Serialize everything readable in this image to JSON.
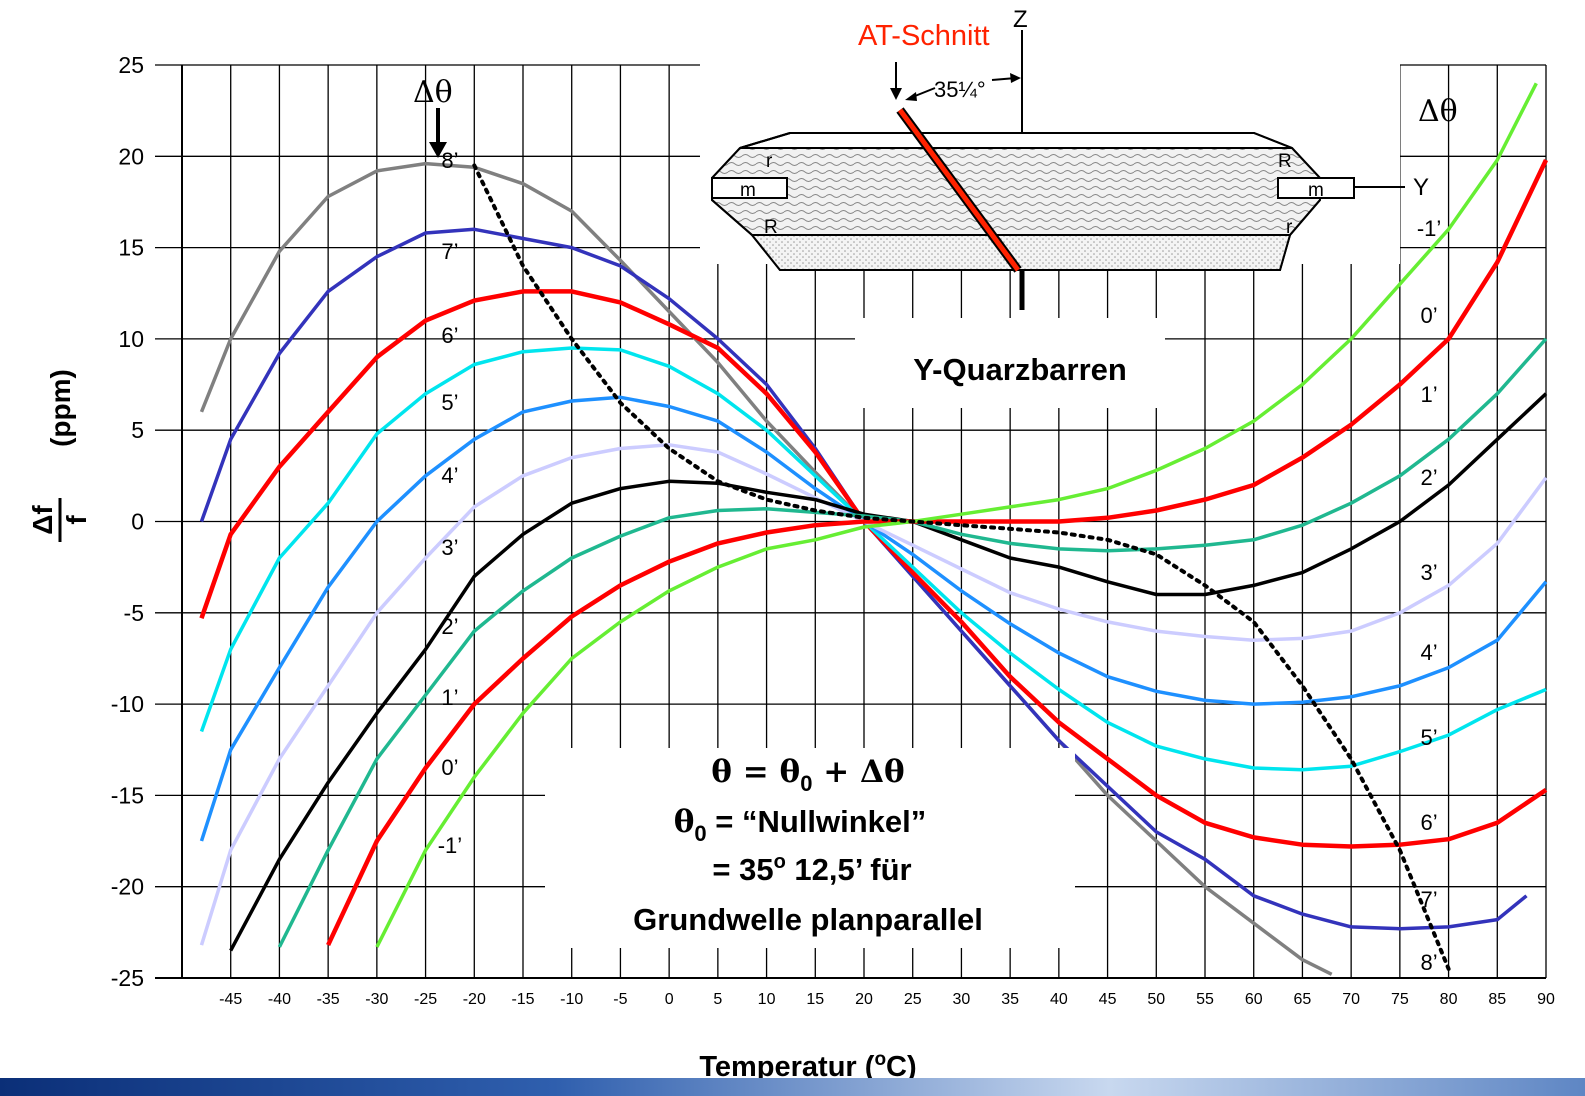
{
  "chart_data": {
    "type": "line",
    "xlabel": "Temperatur (",
    "xlabel_sup": "o",
    "xlabel_end": "C)",
    "ylabel_num": "Δf",
    "ylabel_den": "f",
    "ylabel_unit": "(ppm)",
    "xlim": [
      -50,
      90
    ],
    "ylim": [
      -25,
      25
    ],
    "xticks": [
      -45,
      -40,
      -35,
      -30,
      -25,
      -20,
      -15,
      -10,
      -5,
      0,
      5,
      10,
      15,
      20,
      25,
      30,
      35,
      40,
      45,
      50,
      55,
      60,
      65,
      70,
      75,
      80,
      85,
      90
    ],
    "yticks": [
      25,
      20,
      15,
      10,
      5,
      0,
      -5,
      -10,
      -15,
      -20,
      -25
    ],
    "grid": true,
    "series": [
      {
        "name": "8’",
        "color": "#808080",
        "points": [
          [
            -48,
            6
          ],
          [
            -45,
            10
          ],
          [
            -40,
            14.8
          ],
          [
            -35,
            17.8
          ],
          [
            -30,
            19.2
          ],
          [
            -25,
            19.6
          ],
          [
            -20,
            19.4
          ],
          [
            -15,
            18.5
          ],
          [
            -10,
            17
          ],
          [
            -5,
            14.3
          ],
          [
            0,
            11.5
          ],
          [
            5,
            8.7
          ],
          [
            10,
            5.5
          ],
          [
            15,
            2.7
          ],
          [
            20,
            0
          ],
          [
            25,
            -3
          ],
          [
            30,
            -6
          ],
          [
            35,
            -9
          ],
          [
            40,
            -12
          ],
          [
            45,
            -15
          ],
          [
            50,
            -17.5
          ],
          [
            55,
            -20
          ],
          [
            60,
            -22
          ],
          [
            65,
            -24
          ],
          [
            68,
            -24.8
          ]
        ]
      },
      {
        "name": "7’",
        "color": "#3333bb",
        "points": [
          [
            -48,
            0
          ],
          [
            -45,
            4.5
          ],
          [
            -40,
            9.2
          ],
          [
            -35,
            12.6
          ],
          [
            -30,
            14.5
          ],
          [
            -25,
            15.8
          ],
          [
            -20,
            16
          ],
          [
            -15,
            15.5
          ],
          [
            -10,
            15
          ],
          [
            -5,
            14
          ],
          [
            0,
            12.2
          ],
          [
            5,
            10
          ],
          [
            10,
            7.5
          ],
          [
            15,
            4
          ],
          [
            20,
            0
          ],
          [
            25,
            -3
          ],
          [
            30,
            -6
          ],
          [
            35,
            -9
          ],
          [
            40,
            -12
          ],
          [
            45,
            -14.5
          ],
          [
            50,
            -17
          ],
          [
            55,
            -18.5
          ],
          [
            60,
            -20.5
          ],
          [
            65,
            -21.5
          ],
          [
            70,
            -22.2
          ],
          [
            75,
            -22.3
          ],
          [
            80,
            -22.2
          ],
          [
            85,
            -21.8
          ],
          [
            88,
            -20.5
          ]
        ]
      },
      {
        "name": "6’",
        "color": "#ff0000",
        "points": [
          [
            -48,
            -5.3
          ],
          [
            -45,
            -0.7
          ],
          [
            -40,
            3
          ],
          [
            -35,
            6
          ],
          [
            -30,
            9
          ],
          [
            -25,
            11
          ],
          [
            -20,
            12.1
          ],
          [
            -15,
            12.6
          ],
          [
            -10,
            12.6
          ],
          [
            -5,
            12
          ],
          [
            0,
            10.8
          ],
          [
            5,
            9.5
          ],
          [
            10,
            7
          ],
          [
            15,
            3.8
          ],
          [
            20,
            0
          ],
          [
            25,
            -2.8
          ],
          [
            30,
            -5.5
          ],
          [
            35,
            -8.5
          ],
          [
            40,
            -11
          ],
          [
            45,
            -13
          ],
          [
            50,
            -15
          ],
          [
            55,
            -16.5
          ],
          [
            60,
            -17.3
          ],
          [
            65,
            -17.7
          ],
          [
            70,
            -17.8
          ],
          [
            75,
            -17.7
          ],
          [
            80,
            -17.4
          ],
          [
            85,
            -16.5
          ],
          [
            90,
            -14.7
          ]
        ]
      },
      {
        "name": "5’",
        "color": "#00e5ee",
        "points": [
          [
            -48,
            -11.5
          ],
          [
            -45,
            -7
          ],
          [
            -40,
            -2
          ],
          [
            -35,
            1
          ],
          [
            -30,
            4.8
          ],
          [
            -25,
            7
          ],
          [
            -20,
            8.6
          ],
          [
            -15,
            9.3
          ],
          [
            -10,
            9.5
          ],
          [
            -5,
            9.4
          ],
          [
            0,
            8.5
          ],
          [
            5,
            7
          ],
          [
            10,
            5
          ],
          [
            15,
            2.5
          ],
          [
            20,
            0
          ],
          [
            25,
            -2.5
          ],
          [
            30,
            -5
          ],
          [
            35,
            -7.2
          ],
          [
            40,
            -9.2
          ],
          [
            45,
            -11
          ],
          [
            50,
            -12.3
          ],
          [
            55,
            -13
          ],
          [
            60,
            -13.5
          ],
          [
            65,
            -13.6
          ],
          [
            70,
            -13.4
          ],
          [
            75,
            -12.6
          ],
          [
            80,
            -11.7
          ],
          [
            85,
            -10.3
          ],
          [
            90,
            -9.2
          ]
        ]
      },
      {
        "name": "4’",
        "color": "#1e90ff",
        "points": [
          [
            -48,
            -17.5
          ],
          [
            -45,
            -12.5
          ],
          [
            -40,
            -8
          ],
          [
            -35,
            -3.6
          ],
          [
            -30,
            0
          ],
          [
            -25,
            2.5
          ],
          [
            -20,
            4.5
          ],
          [
            -15,
            6
          ],
          [
            -10,
            6.6
          ],
          [
            -5,
            6.8
          ],
          [
            0,
            6.3
          ],
          [
            5,
            5.5
          ],
          [
            10,
            3.8
          ],
          [
            15,
            1.8
          ],
          [
            20,
            0
          ],
          [
            25,
            -1.8
          ],
          [
            30,
            -3.8
          ],
          [
            35,
            -5.6
          ],
          [
            40,
            -7.2
          ],
          [
            45,
            -8.5
          ],
          [
            50,
            -9.3
          ],
          [
            55,
            -9.8
          ],
          [
            60,
            -10
          ],
          [
            65,
            -9.9
          ],
          [
            70,
            -9.6
          ],
          [
            75,
            -9
          ],
          [
            80,
            -8
          ],
          [
            85,
            -6.5
          ],
          [
            90,
            -3.3
          ]
        ]
      },
      {
        "name": "3’",
        "color": "#ccccff",
        "points": [
          [
            -48,
            -23.2
          ],
          [
            -45,
            -18
          ],
          [
            -40,
            -13
          ],
          [
            -35,
            -9
          ],
          [
            -30,
            -5
          ],
          [
            -25,
            -2
          ],
          [
            -20,
            0.8
          ],
          [
            -15,
            2.5
          ],
          [
            -10,
            3.5
          ],
          [
            -5,
            4
          ],
          [
            0,
            4.2
          ],
          [
            5,
            3.8
          ],
          [
            10,
            2.6
          ],
          [
            15,
            1.3
          ],
          [
            20,
            0
          ],
          [
            25,
            -1.3
          ],
          [
            30,
            -2.6
          ],
          [
            35,
            -3.9
          ],
          [
            40,
            -4.8
          ],
          [
            45,
            -5.5
          ],
          [
            50,
            -6
          ],
          [
            55,
            -6.3
          ],
          [
            60,
            -6.5
          ],
          [
            65,
            -6.4
          ],
          [
            70,
            -6
          ],
          [
            75,
            -5
          ],
          [
            80,
            -3.5
          ],
          [
            85,
            -1.2
          ],
          [
            90,
            2.4
          ]
        ]
      },
      {
        "name": "2’",
        "color": "#000000",
        "points": [
          [
            -45,
            -23.5
          ],
          [
            -40,
            -18.5
          ],
          [
            -35,
            -14.3
          ],
          [
            -30,
            -10.5
          ],
          [
            -25,
            -7
          ],
          [
            -20,
            -3
          ],
          [
            -15,
            -0.7
          ],
          [
            -10,
            1
          ],
          [
            -5,
            1.8
          ],
          [
            0,
            2.2
          ],
          [
            5,
            2.1
          ],
          [
            10,
            1.6
          ],
          [
            15,
            1.2
          ],
          [
            20,
            0.4
          ],
          [
            25,
            0
          ],
          [
            30,
            -1
          ],
          [
            35,
            -2
          ],
          [
            40,
            -2.5
          ],
          [
            45,
            -3.3
          ],
          [
            50,
            -4
          ],
          [
            55,
            -4
          ],
          [
            60,
            -3.5
          ],
          [
            65,
            -2.8
          ],
          [
            70,
            -1.5
          ],
          [
            75,
            0
          ],
          [
            80,
            2
          ],
          [
            85,
            4.5
          ],
          [
            90,
            7
          ]
        ]
      },
      {
        "name": "1’",
        "color": "#20b890",
        "points": [
          [
            -40,
            -23.3
          ],
          [
            -35,
            -18
          ],
          [
            -30,
            -13
          ],
          [
            -25,
            -9.5
          ],
          [
            -20,
            -6
          ],
          [
            -15,
            -3.8
          ],
          [
            -10,
            -2
          ],
          [
            -5,
            -0.8
          ],
          [
            0,
            0.2
          ],
          [
            5,
            0.6
          ],
          [
            10,
            0.7
          ],
          [
            15,
            0.5
          ],
          [
            20,
            0.3
          ],
          [
            25,
            0
          ],
          [
            30,
            -0.7
          ],
          [
            35,
            -1.2
          ],
          [
            40,
            -1.5
          ],
          [
            45,
            -1.6
          ],
          [
            50,
            -1.5
          ],
          [
            55,
            -1.3
          ],
          [
            60,
            -1
          ],
          [
            65,
            -0.2
          ],
          [
            70,
            1
          ],
          [
            75,
            2.5
          ],
          [
            80,
            4.5
          ],
          [
            85,
            7
          ],
          [
            90,
            10
          ]
        ]
      },
      {
        "name": "0’",
        "color": "#ff0000",
        "points": [
          [
            -35,
            -23.2
          ],
          [
            -30,
            -17.5
          ],
          [
            -25,
            -13.5
          ],
          [
            -20,
            -10
          ],
          [
            -15,
            -7.5
          ],
          [
            -10,
            -5.2
          ],
          [
            -5,
            -3.5
          ],
          [
            0,
            -2.2
          ],
          [
            5,
            -1.2
          ],
          [
            10,
            -0.6
          ],
          [
            15,
            -0.2
          ],
          [
            20,
            0
          ],
          [
            25,
            0
          ],
          [
            30,
            0
          ],
          [
            35,
            0
          ],
          [
            40,
            0
          ],
          [
            45,
            0.2
          ],
          [
            50,
            0.6
          ],
          [
            55,
            1.2
          ],
          [
            60,
            2
          ],
          [
            65,
            3.5
          ],
          [
            70,
            5.3
          ],
          [
            75,
            7.5
          ],
          [
            80,
            10
          ],
          [
            85,
            14.2
          ],
          [
            90,
            19.8
          ]
        ]
      },
      {
        "name": "-1’",
        "color": "#66ee33",
        "points": [
          [
            -30,
            -23.3
          ],
          [
            -25,
            -18
          ],
          [
            -20,
            -14
          ],
          [
            -15,
            -10.5
          ],
          [
            -10,
            -7.5
          ],
          [
            -5,
            -5.5
          ],
          [
            0,
            -3.8
          ],
          [
            5,
            -2.5
          ],
          [
            10,
            -1.5
          ],
          [
            15,
            -1
          ],
          [
            20,
            -0.3
          ],
          [
            25,
            0
          ],
          [
            30,
            0.4
          ],
          [
            35,
            0.8
          ],
          [
            40,
            1.2
          ],
          [
            45,
            1.8
          ],
          [
            50,
            2.8
          ],
          [
            55,
            4
          ],
          [
            60,
            5.5
          ],
          [
            65,
            7.5
          ],
          [
            70,
            10
          ],
          [
            75,
            13
          ],
          [
            80,
            16
          ],
          [
            85,
            19.8
          ],
          [
            89,
            24
          ]
        ]
      }
    ],
    "dotted_curve": {
      "color": "#000000",
      "points": [
        [
          -20,
          19.5
        ],
        [
          -15,
          14
        ],
        [
          -10,
          10
        ],
        [
          -5,
          6.5
        ],
        [
          0,
          4
        ],
        [
          5,
          2.2
        ],
        [
          10,
          1.2
        ],
        [
          15,
          0.6
        ],
        [
          20,
          0.2
        ],
        [
          25,
          0
        ],
        [
          30,
          -0.2
        ],
        [
          35,
          -0.4
        ],
        [
          40,
          -0.6
        ],
        [
          45,
          -1
        ],
        [
          50,
          -1.8
        ],
        [
          55,
          -3.5
        ],
        [
          60,
          -5.5
        ],
        [
          65,
          -9
        ],
        [
          70,
          -13
        ],
        [
          75,
          -18
        ],
        [
          80,
          -24.5
        ]
      ]
    },
    "left_angle_labels": [
      "8’",
      "7’",
      "6’",
      "5’",
      "4’",
      "3’",
      "2’",
      "1’",
      "0’",
      "-1’"
    ],
    "right_angle_labels": [
      "-1’",
      "0’",
      "1’",
      "2’",
      "3’",
      "4’",
      "5’",
      "6’",
      "7’",
      "8’"
    ],
    "delta_theta": "Δθ",
    "formula_line1": "θ = θ",
    "formula_line1_sub": "0",
    "formula_line1_end": " + Δθ",
    "formula_line2": "θ",
    "formula_line2_sub": "0",
    "formula_line2_end": " = “Nullwinkel”",
    "formula_line3": "= 35",
    "formula_line3_sup": "o",
    "formula_line3_end": " 12,5’ für",
    "formula_line4": "Grundwelle planparallel"
  },
  "diagram": {
    "cut_label": "AT-Schnitt",
    "angle_label": "35¼°",
    "z_label": "Z",
    "y_label": "Y",
    "bar_title": "Y-Quarzbarren",
    "face_r_small": "r",
    "face_R": "R",
    "face_m": "m"
  },
  "colors": {
    "grid": "#000000",
    "background": "#ffffff",
    "cut": "#ff2200"
  }
}
